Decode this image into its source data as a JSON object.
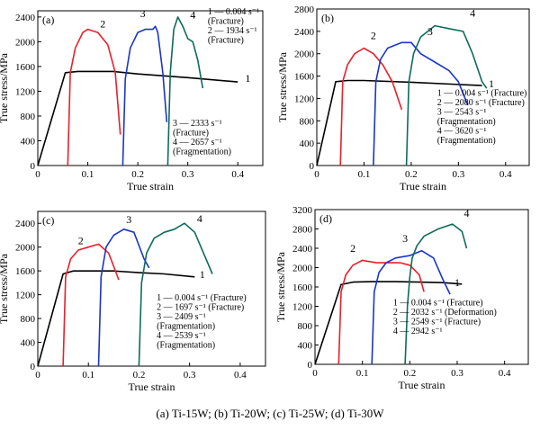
{
  "caption": "(a) Ti-15W; (b) Ti-20W; (c) Ti-25W;  (d) Ti-30W",
  "colors": {
    "s1": "#000000",
    "s2": "#e8202a",
    "s3": "#1a35c8",
    "s4": "#0e6b5a"
  },
  "chart_data": [
    {
      "type": "line",
      "panel_label": "(a)",
      "xlabel": "True strain",
      "ylabel": "True stress/MPa",
      "xlim": [
        0,
        0.45
      ],
      "ylim": [
        0,
        2500
      ],
      "xticks": [
        "0",
        "0.1",
        "0.2",
        "0.3",
        "0.4"
      ],
      "yticks": [
        "0",
        "400",
        "800",
        "1200",
        "1600",
        "2000",
        "2400"
      ],
      "series": [
        {
          "name": "1",
          "color": "#000000",
          "x": [
            0,
            0.055,
            0.08,
            0.15,
            0.2,
            0.3,
            0.4
          ],
          "y": [
            0,
            1500,
            1520,
            1520,
            1480,
            1420,
            1350
          ]
        },
        {
          "name": "2",
          "color": "#e8202a",
          "x": [
            0.06,
            0.065,
            0.075,
            0.09,
            0.1,
            0.12,
            0.14,
            0.155,
            0.165
          ],
          "y": [
            0,
            1500,
            1900,
            2150,
            2200,
            2150,
            1950,
            1500,
            500
          ]
        },
        {
          "name": "3",
          "color": "#1a35c8",
          "x": [
            0.17,
            0.175,
            0.185,
            0.2,
            0.215,
            0.23,
            0.235,
            0.24,
            0.25,
            0.258
          ],
          "y": [
            0,
            1400,
            1900,
            2150,
            2200,
            2200,
            2250,
            2150,
            1500,
            700
          ]
        },
        {
          "name": "4",
          "color": "#0e6b5a",
          "x": [
            0.26,
            0.265,
            0.272,
            0.28,
            0.29,
            0.3,
            0.31,
            0.32,
            0.33
          ],
          "y": [
            0,
            1500,
            2200,
            2400,
            2250,
            2050,
            2000,
            1700,
            1250
          ]
        }
      ],
      "curve_labels": [
        {
          "text": "1",
          "x": 0.42,
          "y": 1350
        },
        {
          "text": "2",
          "x": 0.13,
          "y": 2230
        },
        {
          "text": "3",
          "x": 0.21,
          "y": 2400
        },
        {
          "text": "4",
          "x": 0.31,
          "y": 2380
        }
      ],
      "annotations": [
        {
          "lines": [
            "1 — 0.004 s⁻¹",
            "(Fracture)",
            "2 — 1934 s⁻¹",
            "(Fracture)"
          ],
          "x": 0.34,
          "y": 2440
        },
        {
          "lines": [
            "3 — 2333 s⁻¹",
            "(Fracture)",
            "4 — 2657 s⁻¹",
            "(Fragmentation)"
          ],
          "x": 0.27,
          "y": 640
        }
      ]
    },
    {
      "type": "line",
      "panel_label": "(b)",
      "xlabel": "True strain",
      "ylabel": "True stress/MPa",
      "xlim": [
        0,
        0.45
      ],
      "ylim": [
        0,
        2800
      ],
      "xticks": [
        "0",
        "0.1",
        "0.2",
        "0.3",
        "0.4"
      ],
      "yticks": [
        "0",
        "400",
        "800",
        "1200",
        "1600",
        "2000",
        "2400",
        "2800"
      ],
      "series": [
        {
          "name": "1",
          "color": "#000000",
          "x": [
            0,
            0.04,
            0.065,
            0.1,
            0.2,
            0.3,
            0.35
          ],
          "y": [
            0,
            1500,
            1520,
            1520,
            1490,
            1450,
            1430
          ]
        },
        {
          "name": "2",
          "color": "#e8202a",
          "x": [
            0.05,
            0.055,
            0.065,
            0.08,
            0.1,
            0.12,
            0.14,
            0.16,
            0.18
          ],
          "y": [
            0,
            1500,
            1800,
            2000,
            2100,
            2000,
            1800,
            1500,
            1000
          ]
        },
        {
          "name": "3",
          "color": "#1a35c8",
          "x": [
            0.12,
            0.125,
            0.135,
            0.15,
            0.18,
            0.2,
            0.22,
            0.25,
            0.28,
            0.3,
            0.32
          ],
          "y": [
            0,
            1500,
            1900,
            2100,
            2200,
            2200,
            2000,
            1850,
            1700,
            1500,
            1080
          ]
        },
        {
          "name": "4",
          "color": "#0e6b5a",
          "x": [
            0.19,
            0.195,
            0.205,
            0.22,
            0.25,
            0.28,
            0.31,
            0.33,
            0.35,
            0.36
          ],
          "y": [
            0,
            1500,
            2000,
            2300,
            2500,
            2450,
            2400,
            2000,
            1500,
            1380
          ]
        }
      ],
      "curve_labels": [
        {
          "text": "1",
          "x": 0.37,
          "y": 1400
        },
        {
          "text": "2",
          "x": 0.12,
          "y": 2260
        },
        {
          "text": "3",
          "x": 0.24,
          "y": 2330
        },
        {
          "text": "4",
          "x": 0.33,
          "y": 2660
        }
      ],
      "annotations": [
        {
          "lines": [
            "1 — 0.004 s⁻¹ (Fracture)",
            "2 — 2080 s⁻¹ (Fracture)",
            "3 — 2543 s⁻¹",
            "(Fragmentation)",
            "4 — 3620 s⁻¹",
            "(Fragmentation)"
          ],
          "x": 0.255,
          "y": 1250
        }
      ]
    },
    {
      "type": "line",
      "panel_label": "(c)",
      "xlabel": "True strain",
      "ylabel": "True stress/MPa",
      "xlim": [
        0,
        0.45
      ],
      "ylim": [
        0,
        2600
      ],
      "xticks": [
        "0",
        "0.1",
        "0.2",
        "0.3",
        "0.4"
      ],
      "yticks": [
        "0",
        "400",
        "800",
        "1200",
        "1600",
        "2000",
        "2400"
      ],
      "series": [
        {
          "name": "1",
          "color": "#000000",
          "x": [
            0,
            0.05,
            0.07,
            0.1,
            0.15,
            0.2,
            0.25,
            0.31
          ],
          "y": [
            0,
            1550,
            1600,
            1600,
            1600,
            1570,
            1550,
            1500
          ]
        },
        {
          "name": "2",
          "color": "#e8202a",
          "x": [
            0.05,
            0.055,
            0.065,
            0.08,
            0.1,
            0.12,
            0.14,
            0.16
          ],
          "y": [
            0,
            1500,
            1800,
            1950,
            2000,
            2050,
            1900,
            1450
          ]
        },
        {
          "name": "3",
          "color": "#1a35c8",
          "x": [
            0.12,
            0.125,
            0.135,
            0.15,
            0.17,
            0.19,
            0.21,
            0.22
          ],
          "y": [
            0,
            1500,
            2000,
            2200,
            2300,
            2250,
            1800,
            1650
          ]
        },
        {
          "name": "4",
          "color": "#0e6b5a",
          "x": [
            0.2,
            0.205,
            0.215,
            0.23,
            0.25,
            0.27,
            0.29,
            0.31,
            0.33,
            0.345
          ],
          "y": [
            0,
            1400,
            1900,
            2150,
            2250,
            2300,
            2400,
            2250,
            1850,
            1550
          ]
        }
      ],
      "curve_labels": [
        {
          "text": "1",
          "x": 0.325,
          "y": 1480
        },
        {
          "text": "2",
          "x": 0.085,
          "y": 2050
        },
        {
          "text": "3",
          "x": 0.18,
          "y": 2400
        },
        {
          "text": "4",
          "x": 0.32,
          "y": 2420
        }
      ],
      "annotations": [
        {
          "lines": [
            "1 — 0.004 s⁻¹ (Fracture)",
            "2 — 1697 s⁻¹ (Fracture)",
            "3 — 2409 s⁻¹",
            "(Fragmentation)",
            "4 — 2539 s⁻¹",
            "(Fragmentation)"
          ],
          "x": 0.235,
          "y": 1100
        }
      ]
    },
    {
      "type": "line",
      "panel_label": "(d)",
      "xlabel": "True strain",
      "ylabel": "True stress/MPa",
      "xlim": [
        0,
        0.45
      ],
      "ylim": [
        0,
        3200
      ],
      "xticks": [
        "0",
        "0.1",
        "0.2",
        "0.3",
        "0.4"
      ],
      "yticks": [
        "0",
        "400",
        "800",
        "1200",
        "1600",
        "2000",
        "2400",
        "2800",
        "3200"
      ],
      "series": [
        {
          "name": "1",
          "color": "#000000",
          "x": [
            0,
            0.055,
            0.08,
            0.12,
            0.17,
            0.22,
            0.27,
            0.31
          ],
          "y": [
            0,
            1650,
            1700,
            1710,
            1710,
            1700,
            1690,
            1660
          ]
        },
        {
          "name": "2",
          "color": "#e8202a",
          "x": [
            0.05,
            0.055,
            0.065,
            0.08,
            0.1,
            0.13,
            0.15,
            0.18,
            0.2,
            0.22,
            0.23
          ],
          "y": [
            0,
            1500,
            1850,
            2050,
            2150,
            2100,
            2100,
            2100,
            2050,
            1850,
            1500
          ]
        },
        {
          "name": "3",
          "color": "#1a35c8",
          "x": [
            0.12,
            0.125,
            0.135,
            0.15,
            0.17,
            0.2,
            0.225,
            0.25,
            0.27,
            0.285
          ],
          "y": [
            0,
            1500,
            1900,
            2100,
            2200,
            2250,
            2350,
            2200,
            1750,
            1450
          ]
        },
        {
          "name": "4",
          "color": "#0e6b5a",
          "x": [
            0.19,
            0.195,
            0.2,
            0.205,
            0.215,
            0.23,
            0.26,
            0.29,
            0.31,
            0.32
          ],
          "y": [
            0,
            1200,
            1800,
            2200,
            2450,
            2650,
            2800,
            2900,
            2750,
            2400
          ]
        }
      ],
      "curve_labels": [
        {
          "text": "1",
          "x": 0.3,
          "y": 1620
        },
        {
          "text": "2",
          "x": 0.08,
          "y": 2330
        },
        {
          "text": "3",
          "x": 0.19,
          "y": 2530
        },
        {
          "text": "4",
          "x": 0.32,
          "y": 3050
        }
      ],
      "annotations": [
        {
          "lines": [
            "1 — 0.004 s⁻¹ (Fracture)",
            "2 — 2032 s⁻¹ (Deformation)",
            "3 — 2549 s⁻¹ (Fracture)",
            "4 — 2942 s⁻¹"
          ],
          "x": 0.165,
          "y": 1220
        }
      ]
    }
  ]
}
